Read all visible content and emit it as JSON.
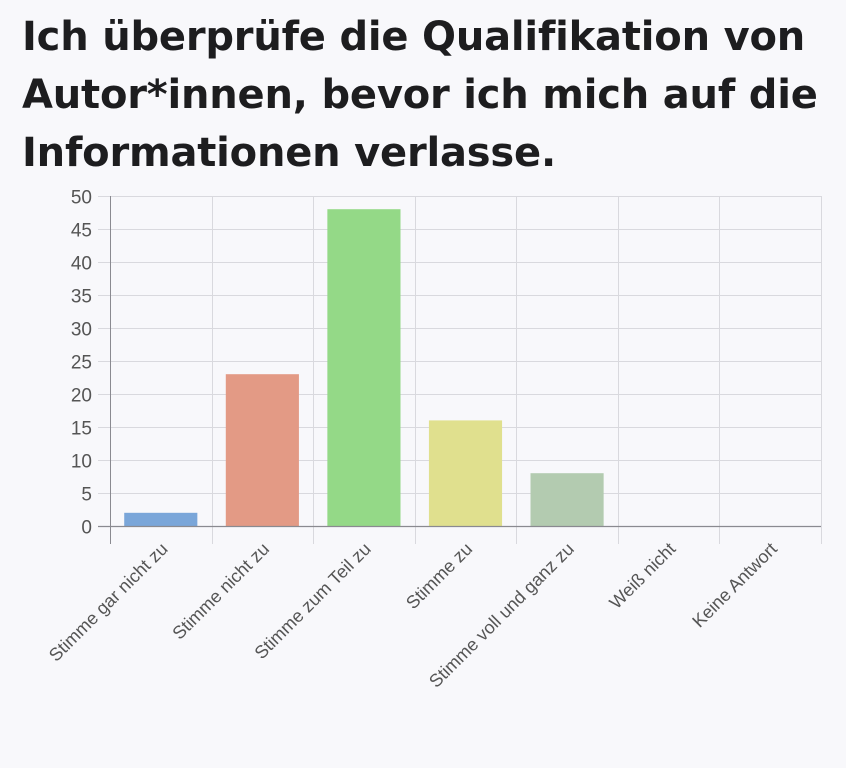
{
  "title": "Ich überprüfe die Qualifikation von Autor*innen, bevor ich mich auf die Informationen verlasse.",
  "chart_data": {
    "type": "bar",
    "categories": [
      "Stimme gar nicht zu",
      "Stimme nicht zu",
      "Stimme zum Teil zu",
      "Stimme zu",
      "Stimme voll und ganz zu",
      "Weiß nicht",
      "Keine Antwort"
    ],
    "values": [
      2,
      23,
      48,
      16,
      8,
      0,
      0
    ],
    "colors": [
      "#7aa6d9",
      "#e39a85",
      "#94d987",
      "#e0e08e",
      "#b3cbb0",
      "#cccccc",
      "#cccccc"
    ],
    "ylim": [
      0,
      50
    ],
    "yticks": [
      0,
      5,
      10,
      15,
      20,
      25,
      30,
      35,
      40,
      45,
      50
    ],
    "grid": true
  }
}
